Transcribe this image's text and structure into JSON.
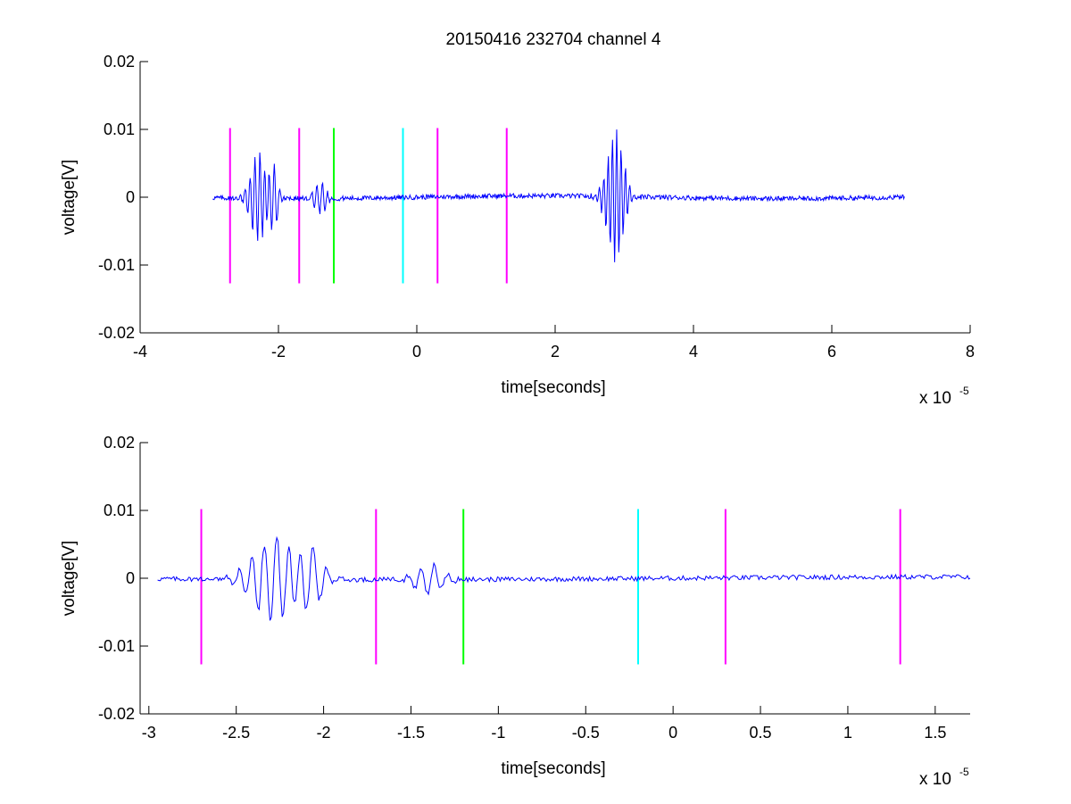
{
  "chart_data": [
    {
      "type": "line",
      "title": "20150416 232704 channel 4",
      "xlabel": "time[seconds]",
      "ylabel": "voltage[V]",
      "x_exponent_label": "x 10",
      "x_exponent": "-5",
      "xlim": [
        -4,
        8
      ],
      "ylim": [
        -0.02,
        0.02
      ],
      "x_scale_note": "x values in units of 1e-5 seconds",
      "x_ticks": [
        -4,
        -2,
        0,
        2,
        4,
        6,
        8
      ],
      "x_tick_labels": [
        "-4",
        "-2",
        "0",
        "2",
        "4",
        "6",
        "8"
      ],
      "y_ticks": [
        -0.02,
        -0.01,
        0,
        0.01,
        0.02
      ],
      "y_tick_labels": [
        "-0.02",
        "-0.01",
        "0",
        "0.01",
        "0.02"
      ],
      "grid": false,
      "signal": {
        "color": "#0000ff",
        "x_range": [
          -2.95,
          7.05
        ],
        "samples": 1000,
        "bursts": [
          {
            "center": -2.28,
            "width": 0.18,
            "amp": 0.0072,
            "freq": 14
          },
          {
            "center": -2.08,
            "width": 0.1,
            "amp": 0.0048,
            "freq": 12
          },
          {
            "center": -1.4,
            "width": 0.12,
            "amp": 0.0026,
            "freq": 13
          },
          {
            "center": 2.87,
            "width": 0.18,
            "amp": 0.0105,
            "freq": 16
          }
        ]
      },
      "markers": [
        {
          "x": -2.7,
          "color": "#ff00ff"
        },
        {
          "x": -1.7,
          "color": "#ff00ff"
        },
        {
          "x": -1.2,
          "color": "#00ff00"
        },
        {
          "x": -0.2,
          "color": "#00ffff"
        },
        {
          "x": 0.3,
          "color": "#ff00ff"
        },
        {
          "x": 1.3,
          "color": "#ff00ff"
        }
      ],
      "marker_y_range": [
        -0.0127,
        0.0102
      ]
    },
    {
      "type": "line",
      "xlabel": "time[seconds]",
      "ylabel": "voltage[V]",
      "x_exponent_label": "x 10",
      "x_exponent": "-5",
      "xlim": [
        -3.05,
        1.7
      ],
      "ylim": [
        -0.02,
        0.02
      ],
      "x_ticks": [
        -3,
        -2.5,
        -2,
        -1.5,
        -1,
        -0.5,
        0,
        0.5,
        1,
        1.5
      ],
      "x_tick_labels": [
        "-3",
        "-2.5",
        "-2",
        "-1.5",
        "-1",
        "-0.5",
        "0",
        "0.5",
        "1",
        "1.5"
      ],
      "y_ticks": [
        -0.02,
        -0.01,
        0,
        0.01,
        0.02
      ],
      "y_tick_labels": [
        "-0.02",
        "-0.01",
        "0",
        "0.01",
        "0.02"
      ],
      "grid": false,
      "signal": {
        "color": "#0000ff",
        "x_range": [
          -2.95,
          1.7
        ],
        "samples": 600,
        "bursts": [
          {
            "center": -2.28,
            "width": 0.18,
            "amp": 0.0072,
            "freq": 14
          },
          {
            "center": -2.08,
            "width": 0.1,
            "amp": 0.0048,
            "freq": 12
          },
          {
            "center": -1.4,
            "width": 0.12,
            "amp": 0.0026,
            "freq": 13
          }
        ]
      },
      "markers": [
        {
          "x": -2.7,
          "color": "#ff00ff"
        },
        {
          "x": -1.7,
          "color": "#ff00ff"
        },
        {
          "x": -1.2,
          "color": "#00ff00"
        },
        {
          "x": -0.2,
          "color": "#00ffff"
        },
        {
          "x": 0.3,
          "color": "#ff00ff"
        },
        {
          "x": 1.3,
          "color": "#ff00ff"
        }
      ],
      "marker_y_range": [
        -0.0127,
        0.0102
      ]
    }
  ]
}
